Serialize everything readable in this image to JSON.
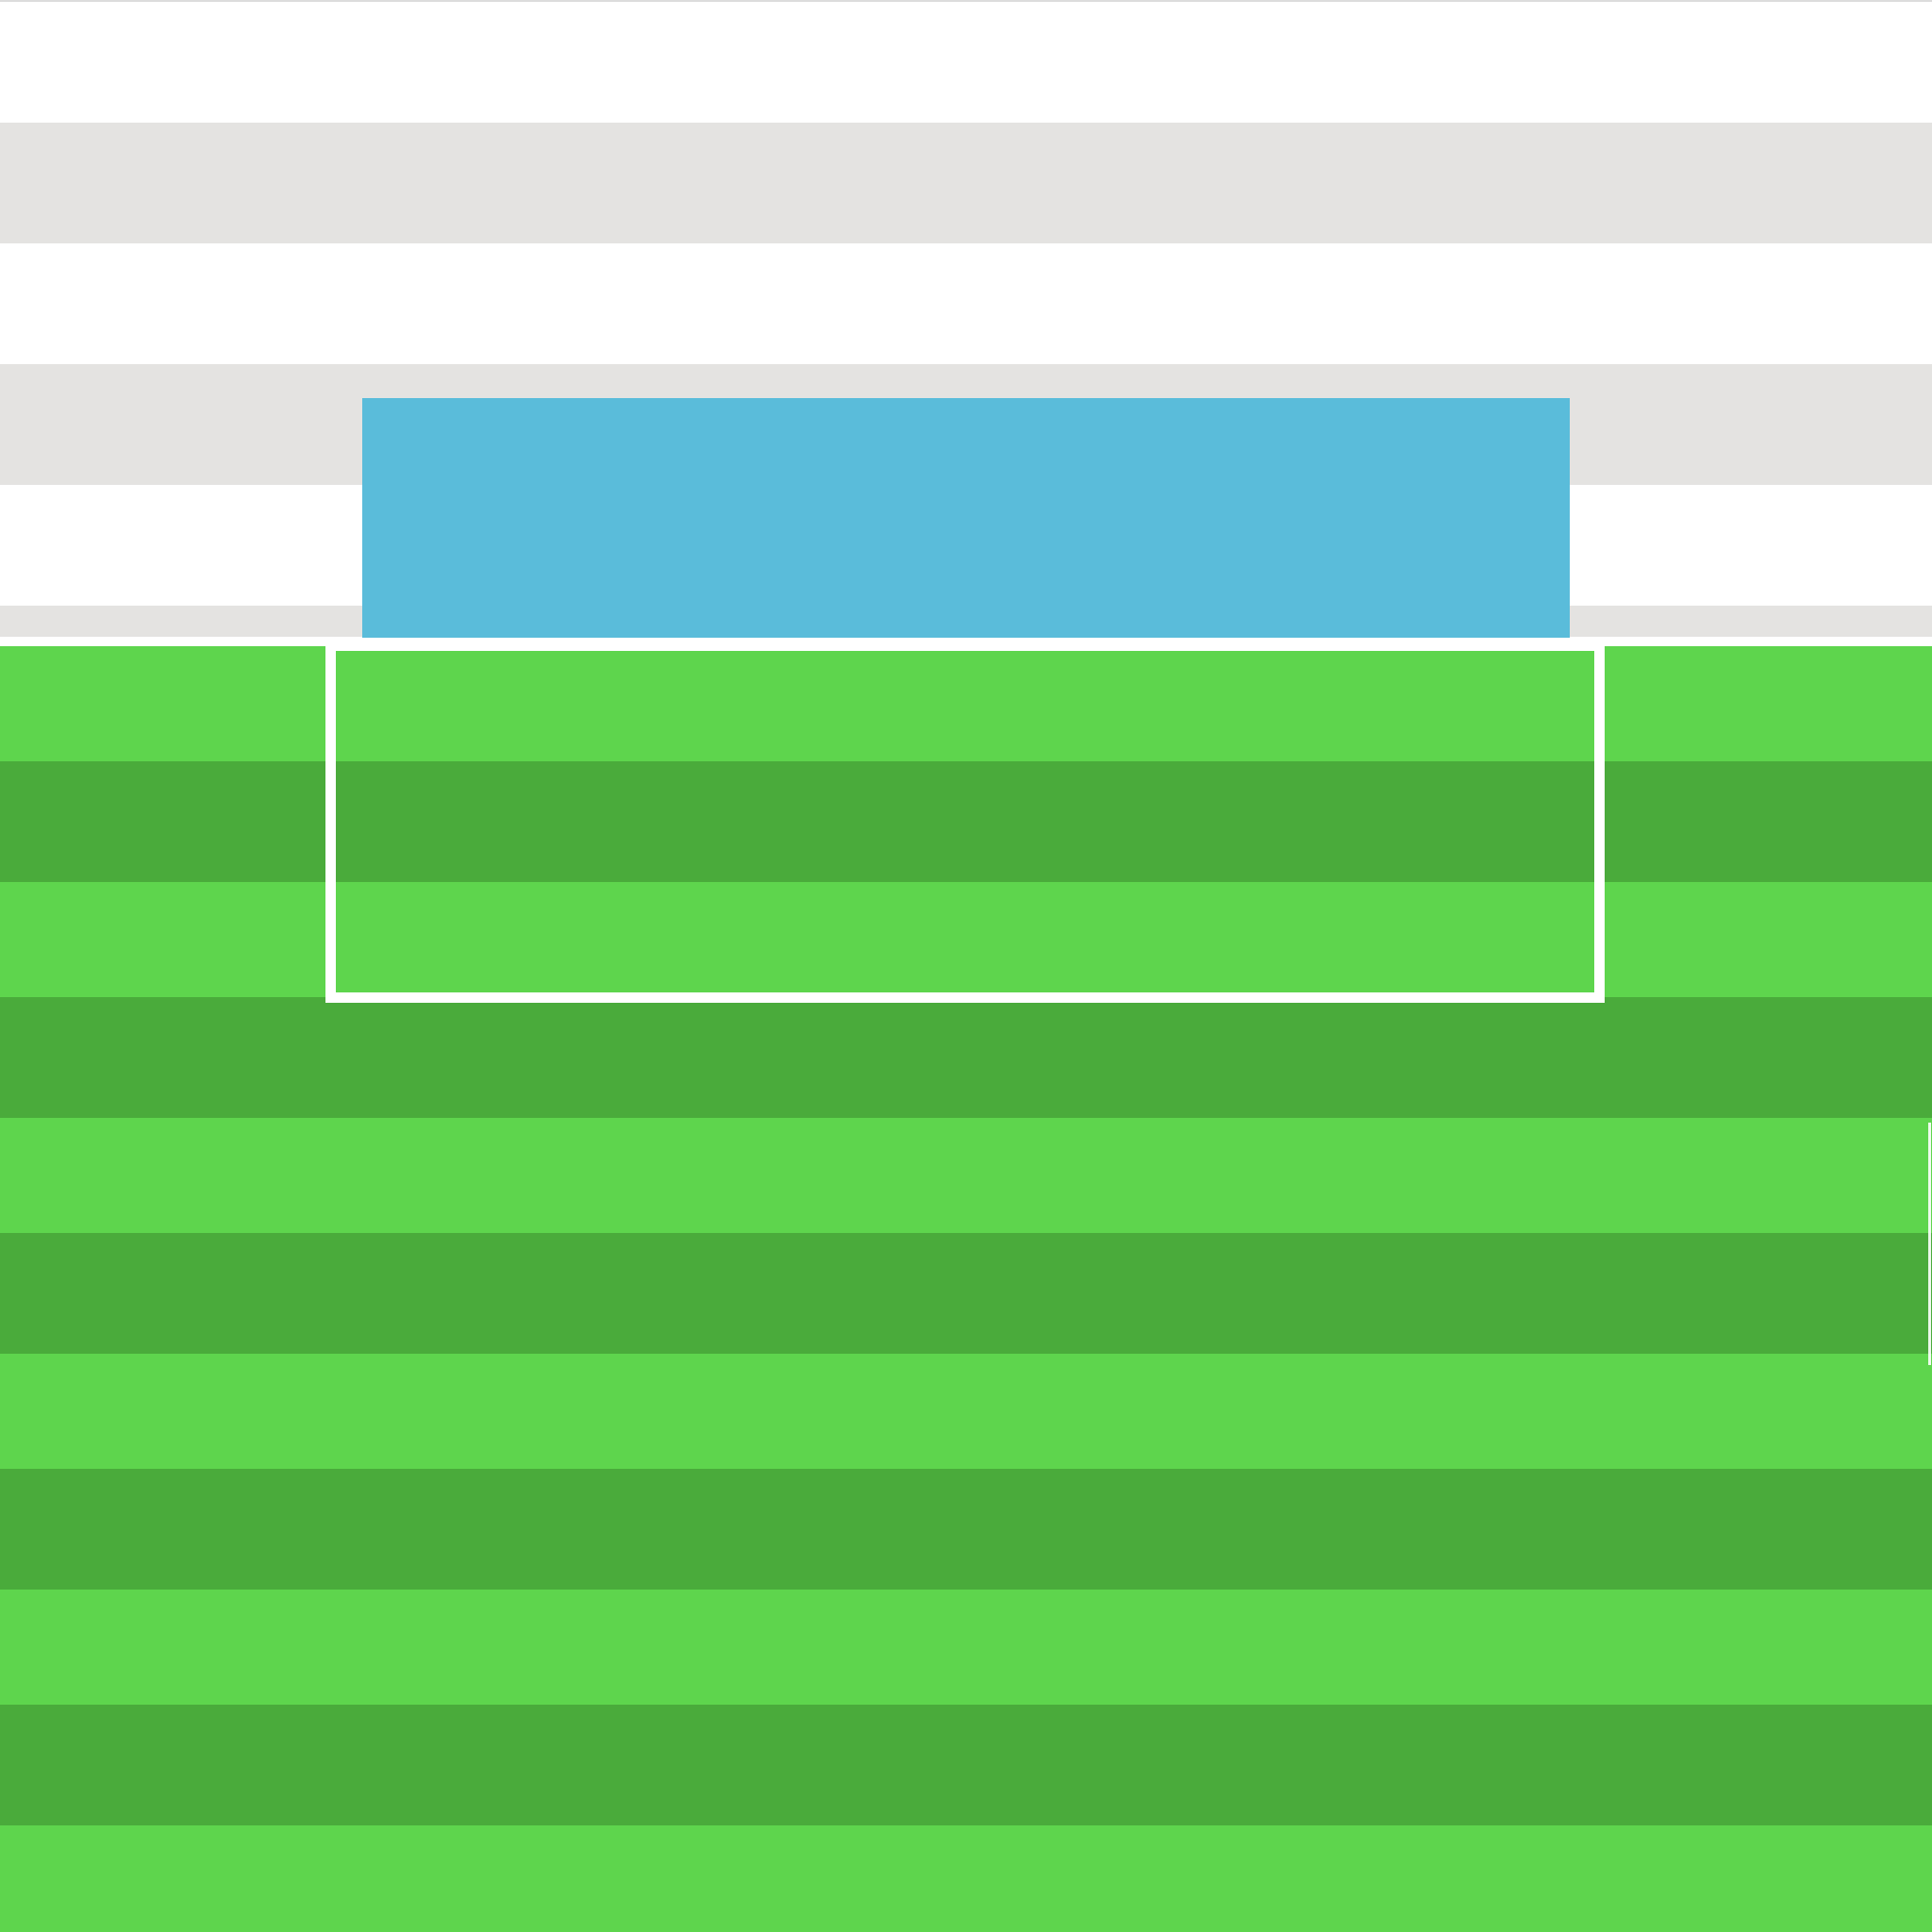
{
  "scene": {
    "type": "soccer-penalty-view",
    "colors": {
      "stands_light": "#ffffff",
      "stands_gray": "#e4e3e1",
      "pitch_light": "#5ed54d",
      "pitch_dark": "#4aab3b",
      "goal": "#5abcda",
      "lines": "#ffffff"
    }
  }
}
